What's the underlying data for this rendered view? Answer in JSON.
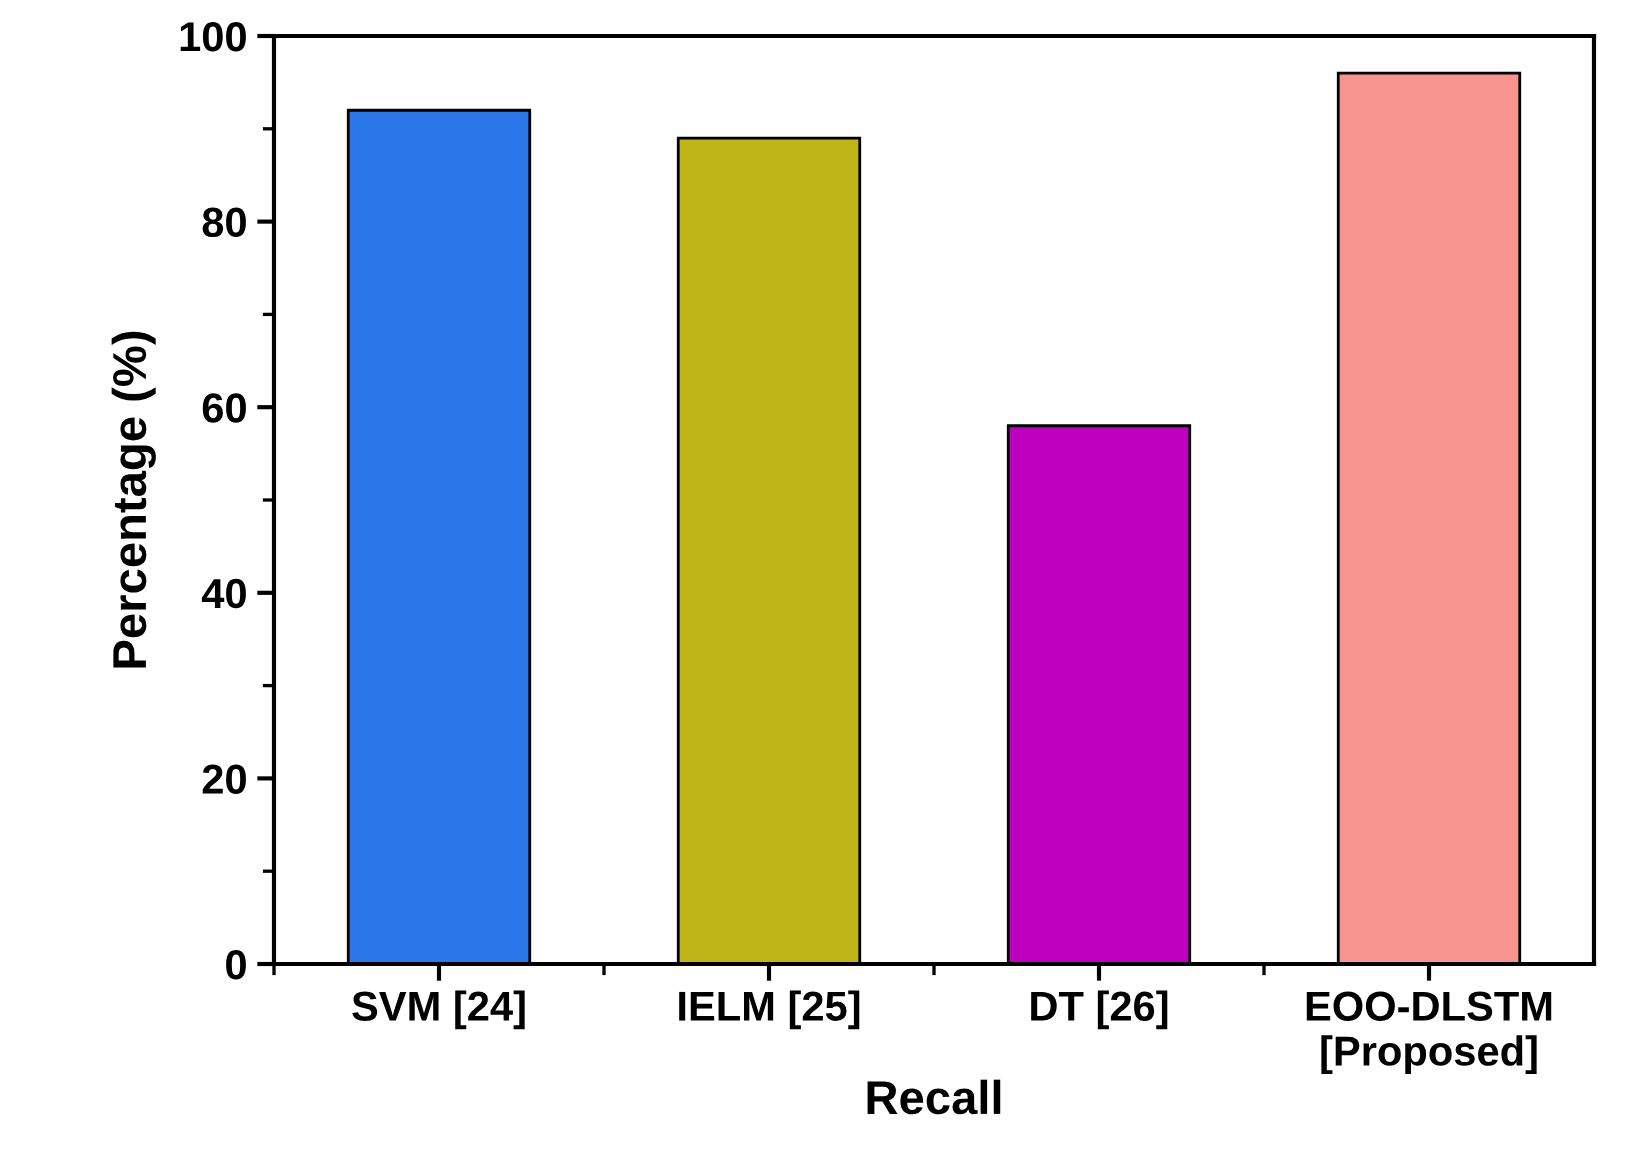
{
  "chart_data": {
    "type": "bar",
    "xlabel": "Recall",
    "ylabel": "Percentage (%)",
    "categories": [
      "SVM [24]",
      "IELM [25]",
      "DT [26]",
      "EOO-DLSTM\n[Proposed]"
    ],
    "values": [
      92,
      89,
      58,
      96
    ],
    "colors": [
      "#2b76e8",
      "#bfb518",
      "#bd00bd",
      "#f89490"
    ],
    "ylim": [
      0,
      100
    ],
    "yticks": [
      0,
      20,
      40,
      60,
      80,
      100
    ],
    "grid": false,
    "legend": false
  }
}
